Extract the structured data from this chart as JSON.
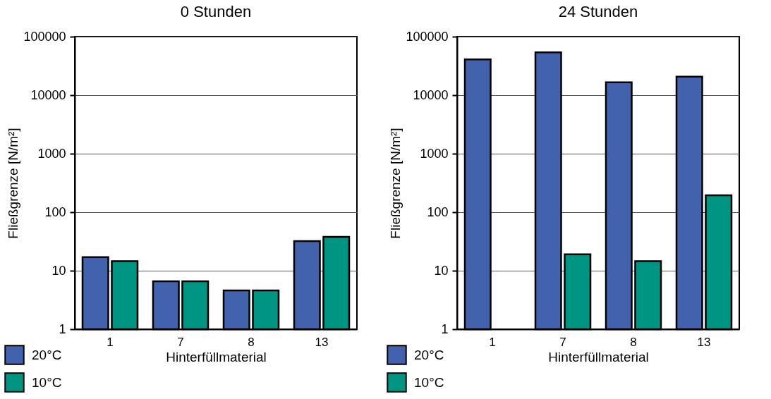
{
  "chart_data": [
    {
      "type": "bar",
      "title": "0 Stunden",
      "xlabel": "Hinterfüllmaterial",
      "ylabel": "Fließgrenze [N/m²]",
      "categories": [
        "1",
        "7",
        "8",
        "13"
      ],
      "log": "y",
      "grid": "y",
      "legend": "bottom left",
      "ylim": [
        1,
        100000
      ],
      "yticks": [
        1,
        10,
        100,
        1000,
        10000,
        100000
      ],
      "series": [
        {
          "name": "20°C",
          "color": "#4262ad",
          "values": [
            17,
            6.6,
            4.6,
            32
          ]
        },
        {
          "name": "10°C",
          "color": "#009482",
          "values": [
            14.5,
            6.6,
            4.6,
            38
          ]
        }
      ]
    },
    {
      "type": "bar",
      "title": "24 Stunden",
      "xlabel": "Hinterfüllmaterial",
      "ylabel": "Fließgrenze [N/m²]",
      "categories": [
        "1",
        "7",
        "8",
        "13"
      ],
      "log": "y",
      "grid": "y",
      "legend": "bottom left",
      "ylim": [
        1,
        100000
      ],
      "yticks": [
        1,
        10,
        100,
        1000,
        10000,
        100000
      ],
      "series": [
        {
          "name": "20°C",
          "color": "#4262ad",
          "values": [
            41000,
            54000,
            16600,
            20700
          ]
        },
        {
          "name": "10°C",
          "color": "#009482",
          "values": [
            null,
            19,
            14.5,
            195
          ]
        }
      ]
    }
  ]
}
